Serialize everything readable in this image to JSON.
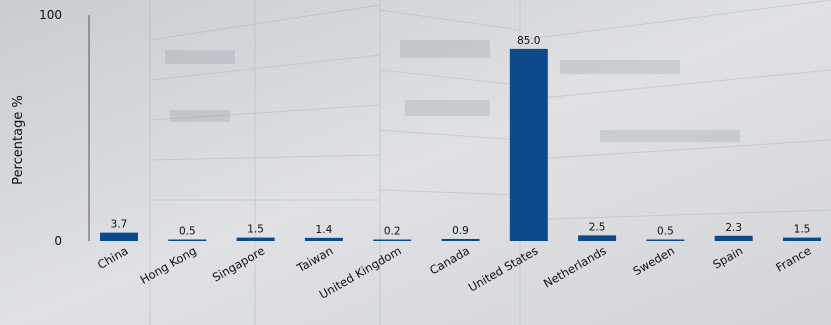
{
  "chart_data": {
    "type": "bar",
    "title": "",
    "xlabel": "",
    "ylabel": "Percentage %",
    "ylim": [
      0,
      100
    ],
    "yticks": [
      0,
      100
    ],
    "categories": [
      "China",
      "Hong Kong",
      "Singapore",
      "Taiwan",
      "United Kingdom",
      "Canada",
      "United States",
      "Netherlands",
      "Sweden",
      "Spain",
      "France"
    ],
    "values": [
      3.7,
      0.5,
      1.5,
      1.4,
      0.2,
      0.9,
      85.0,
      2.5,
      0.5,
      2.3,
      1.5
    ],
    "value_labels": [
      "3.7",
      "0.5",
      "1.5",
      "1.4",
      "0.2",
      "0.9",
      "85.0",
      "2.5",
      "0.5",
      "2.3",
      "1.5"
    ],
    "bar_color": "#0d4a8c",
    "grid": false,
    "legend": "none"
  }
}
